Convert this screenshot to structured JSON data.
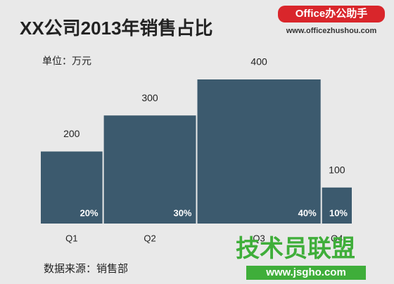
{
  "chart_data": {
    "type": "mekko",
    "title": "XX公司2013年销售占比",
    "unit_label": "单位：万元",
    "source": "数据来源：销售部",
    "categories": [
      "Q1",
      "Q2",
      "Q3",
      "Q4"
    ],
    "values": [
      200,
      300,
      400,
      100
    ],
    "shares": [
      20,
      30,
      40,
      10
    ],
    "share_labels": [
      "20%",
      "30%",
      "40%",
      "10%"
    ],
    "color": "#3c5a6e"
  },
  "branding": {
    "logo": "Office办公助手",
    "logo_url": "www.officezhushou.com",
    "watermark": "技术员联盟",
    "watermark_url": "www.jsgho.com"
  }
}
